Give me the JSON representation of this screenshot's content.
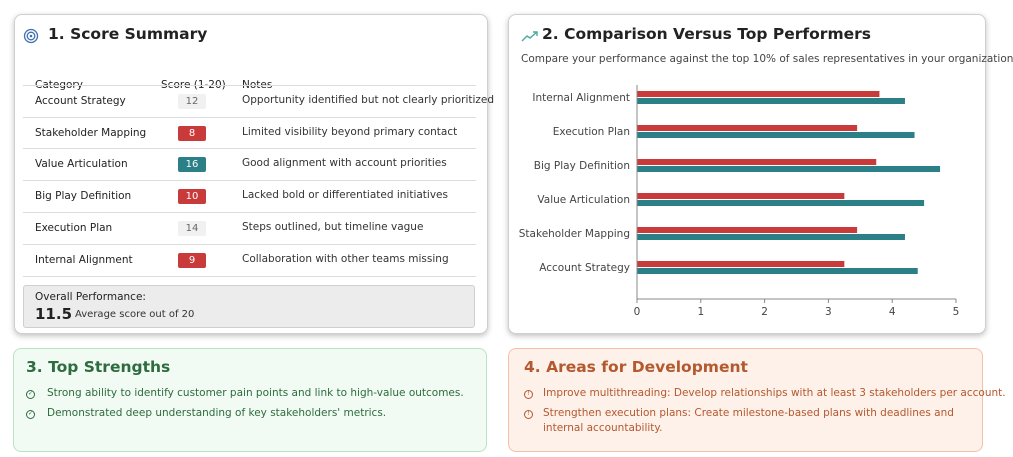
{
  "colors": {
    "red": "#c93a3a",
    "teal": "#2b7f86",
    "green_text": "#2e6b3e",
    "orange_text": "#b4582e"
  },
  "score_summary": {
    "title": "1. Score Summary",
    "icon": "target-icon",
    "headers": {
      "category": "Category",
      "score": "Score (1-20)",
      "notes": "Notes"
    },
    "rows": [
      {
        "category": "Account Strategy",
        "score": "12",
        "level": "neutral",
        "note": "Opportunity identified but not clearly prioritized"
      },
      {
        "category": "Stakeholder Mapping",
        "score": "8",
        "level": "low",
        "note": "Limited visibility beyond primary contact"
      },
      {
        "category": "Value Articulation",
        "score": "16",
        "level": "high",
        "note": "Good alignment with account priorities"
      },
      {
        "category": "Big Play Definition",
        "score": "10",
        "level": "low",
        "note": "Lacked bold or differentiated initiatives"
      },
      {
        "category": "Execution Plan",
        "score": "14",
        "level": "neutral",
        "note": "Steps outlined, but timeline vague"
      },
      {
        "category": "Internal Alignment",
        "score": "9",
        "level": "low",
        "note": "Collaboration with other teams missing"
      }
    ],
    "overall": {
      "label": "Overall Performance:",
      "value": "11.5",
      "caption": "Average score out of 20"
    }
  },
  "comparison": {
    "title": "2. Comparison Versus Top Performers",
    "icon": "trend-line-icon",
    "subtitle": "Compare your performance against the top 10% of sales representatives in your organization"
  },
  "chart_data": {
    "type": "bar",
    "orientation": "horizontal",
    "categories": [
      "Internal Alignment",
      "Execution Plan",
      "Big Play Definition",
      "Value Articulation",
      "Stakeholder Mapping",
      "Account Strategy"
    ],
    "series": [
      {
        "color": "#c93a3a",
        "values": [
          3.8,
          3.45,
          3.75,
          3.25,
          3.45,
          3.25
        ]
      },
      {
        "color": "#2b7f86",
        "values": [
          4.2,
          4.35,
          4.75,
          4.5,
          4.2,
          4.4
        ]
      }
    ],
    "xlim": [
      0,
      5
    ],
    "xticks": [
      "0",
      "1",
      "2",
      "3",
      "4",
      "5"
    ],
    "grid": false,
    "legend": "none"
  },
  "strengths": {
    "title": "3. Top Strengths",
    "items": [
      "Strong ability to identify customer pain points and link to high-value outcomes.",
      "Demonstrated deep understanding of key stakeholders' metrics."
    ]
  },
  "development": {
    "title": "4. Areas for Development",
    "items": [
      {
        "lines": [
          "Improve multithreading: Develop relationships with at least 3 stakeholders per account."
        ]
      },
      {
        "lines": [
          "Strengthen execution plans: Create milestone-based plans with deadlines and",
          "internal accountability."
        ]
      }
    ]
  }
}
